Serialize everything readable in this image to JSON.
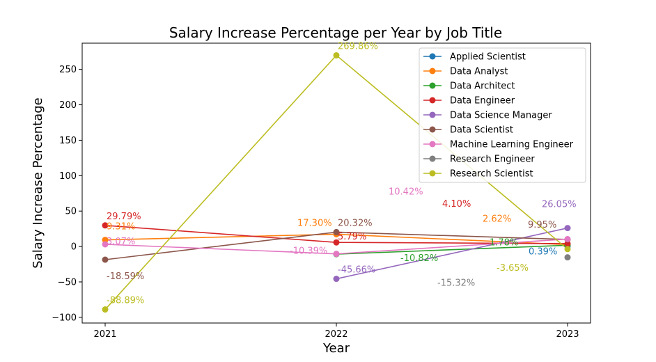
{
  "chart_data": {
    "type": "line",
    "title": "Salary Increase Percentage per Year by Job Title",
    "xlabel": "Year",
    "ylabel": "Salary Increase Percentage",
    "x": [
      2021,
      2022,
      2023
    ],
    "x_tick_labels": [
      "2021",
      "2022",
      "2023"
    ],
    "ylim": [
      -108,
      287
    ],
    "y_ticks": [
      -100,
      -50,
      0,
      50,
      100,
      150,
      200,
      250
    ],
    "y_tick_labels": [
      "−100",
      "−50",
      "0",
      "50",
      "100",
      "150",
      "200",
      "250"
    ],
    "grid": false,
    "legend_position": "top-right",
    "series": [
      {
        "name": "Applied Scientist",
        "color": "#1f77b4",
        "points": [
          {
            "x": 2023,
            "y": 0.39,
            "label": "0.39%"
          }
        ]
      },
      {
        "name": "Data Analyst",
        "color": "#ff7f0e",
        "points": [
          {
            "x": 2021,
            "y": 9.31,
            "label": "9.31%"
          },
          {
            "x": 2022,
            "y": 17.3,
            "label": "17.30%"
          },
          {
            "x": 2023,
            "y": 2.62,
            "label": "2.62%"
          }
        ]
      },
      {
        "name": "Data Architect",
        "color": "#2ca02c",
        "points": [
          {
            "x": 2022,
            "y": -10.82,
            "label": "-10.82%"
          },
          {
            "x": 2023,
            "y": 1.78,
            "label": "1.78%"
          }
        ]
      },
      {
        "name": "Data Engineer",
        "color": "#d62728",
        "points": [
          {
            "x": 2021,
            "y": 29.79,
            "label": "29.79%"
          },
          {
            "x": 2022,
            "y": 5.79,
            "label": "5.79%"
          },
          {
            "x": 2023,
            "y": 4.1,
            "label": "4.10%"
          }
        ]
      },
      {
        "name": "Data Science Manager",
        "color": "#9467bd",
        "points": [
          {
            "x": 2022,
            "y": -45.66,
            "label": "-45.66%"
          },
          {
            "x": 2023,
            "y": 26.05,
            "label": "26.05%"
          }
        ]
      },
      {
        "name": "Data Scientist",
        "color": "#8c564b",
        "points": [
          {
            "x": 2021,
            "y": -18.59,
            "label": "-18.59%"
          },
          {
            "x": 2022,
            "y": 20.32,
            "label": "20.32%"
          },
          {
            "x": 2023,
            "y": 9.95,
            "label": "9.95%"
          }
        ]
      },
      {
        "name": "Machine Learning Engineer",
        "color": "#e377c2",
        "points": [
          {
            "x": 2021,
            "y": 3.07,
            "label": "3.07%"
          },
          {
            "x": 2022,
            "y": -10.39,
            "label": "-10.39%"
          },
          {
            "x": 2023,
            "y": 10.42,
            "label": "10.42%"
          }
        ]
      },
      {
        "name": "Research Engineer",
        "color": "#7f7f7f",
        "points": [
          {
            "x": 2023,
            "y": -15.32,
            "label": "-15.32%"
          }
        ]
      },
      {
        "name": "Research Scientist",
        "color": "#bcbd22",
        "points": [
          {
            "x": 2021,
            "y": -88.89,
            "label": "-88.89%"
          },
          {
            "x": 2022,
            "y": 269.86,
            "label": "269.86%"
          },
          {
            "x": 2023,
            "y": -3.65,
            "label": "-3.65%"
          }
        ]
      }
    ]
  }
}
